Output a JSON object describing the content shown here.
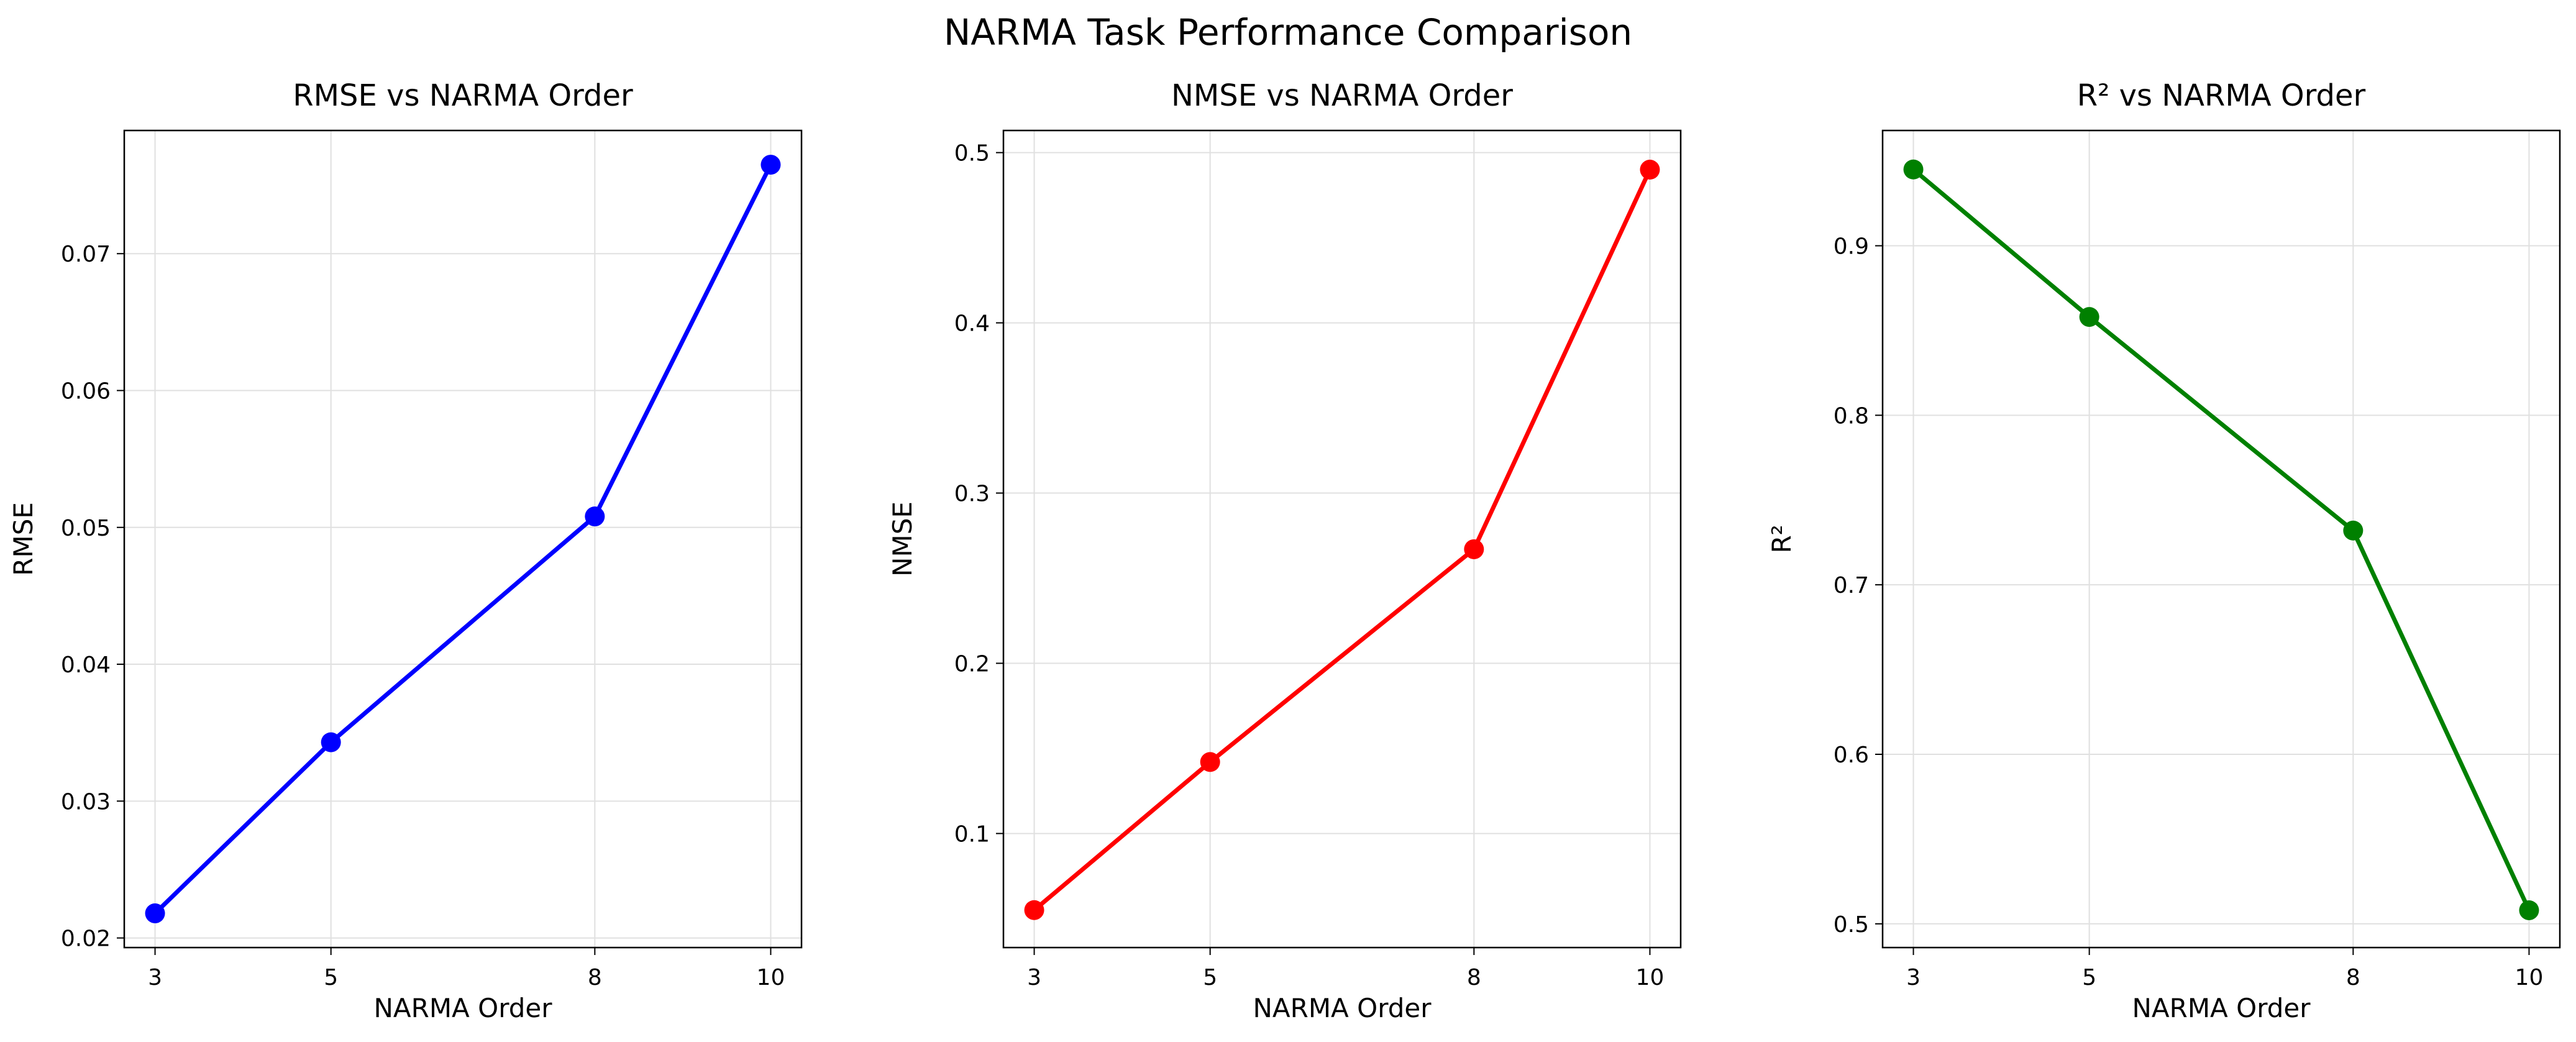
{
  "figure": {
    "title": "NARMA Task Performance Comparison"
  },
  "chart_data": [
    {
      "type": "line",
      "title": "RMSE vs NARMA Order",
      "xlabel": "NARMA Order",
      "ylabel": "RMSE",
      "x": [
        3,
        5,
        8,
        10
      ],
      "xticks": [
        "3",
        "5",
        "8",
        "10"
      ],
      "xlim": [
        2.65,
        10.35
      ],
      "ylim": [
        0.0193,
        0.079
      ],
      "yticks": [
        0.02,
        0.03,
        0.04,
        0.05,
        0.06,
        0.07
      ],
      "ytick_labels": [
        "0.02",
        "0.03",
        "0.04",
        "0.05",
        "0.06",
        "0.07"
      ],
      "grid": true,
      "series": [
        {
          "values": [
            0.0218,
            0.0343,
            0.0508,
            0.0765
          ],
          "color": "#0000ff"
        }
      ]
    },
    {
      "type": "line",
      "title": "NMSE vs NARMA Order",
      "xlabel": "NARMA Order",
      "ylabel": "NMSE",
      "x": [
        3,
        5,
        8,
        10
      ],
      "xticks": [
        "3",
        "5",
        "8",
        "10"
      ],
      "xlim": [
        2.65,
        10.35
      ],
      "ylim": [
        0.033,
        0.513
      ],
      "yticks": [
        0.1,
        0.2,
        0.3,
        0.4,
        0.5
      ],
      "ytick_labels": [
        "0.1",
        "0.2",
        "0.3",
        "0.4",
        "0.5"
      ],
      "grid": true,
      "series": [
        {
          "values": [
            0.055,
            0.142,
            0.267,
            0.49
          ],
          "color": "#ff0000"
        }
      ]
    },
    {
      "type": "line",
      "title": "R² vs NARMA Order",
      "xlabel": "NARMA Order",
      "ylabel": "R²",
      "x": [
        3,
        5,
        8,
        10
      ],
      "xticks": [
        "3",
        "5",
        "8",
        "10"
      ],
      "xlim": [
        2.65,
        10.35
      ],
      "ylim": [
        0.486,
        0.968
      ],
      "yticks": [
        0.5,
        0.6,
        0.7,
        0.8,
        0.9
      ],
      "ytick_labels": [
        "0.5",
        "0.6",
        "0.7",
        "0.8",
        "0.9"
      ],
      "grid": true,
      "series": [
        {
          "values": [
            0.945,
            0.858,
            0.732,
            0.508
          ],
          "color": "#008000"
        }
      ]
    }
  ]
}
